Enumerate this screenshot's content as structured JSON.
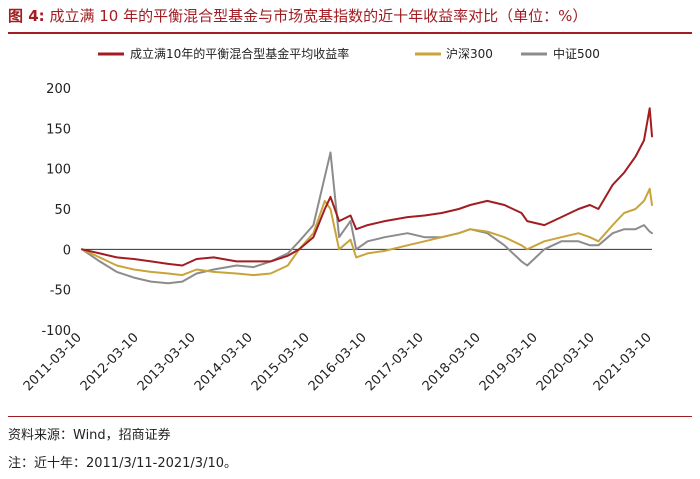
{
  "figure": {
    "label": "图 4:",
    "title": "成立满 10 年的平衡混合型基金与市场宽基指数的近十年收益率对比（单位：%）",
    "source": "资料来源：Wind，招商证券",
    "note": "注：近十年：2011/3/11-2021/3/10。"
  },
  "chart_data": {
    "type": "line",
    "title": "",
    "xlabel": "",
    "ylabel": "",
    "ylim": [
      -100,
      200
    ],
    "yticks": [
      -100,
      -50,
      0,
      50,
      100,
      150,
      200
    ],
    "xticks": [
      "2011-03-10",
      "2012-03-10",
      "2013-03-10",
      "2014-03-10",
      "2015-03-10",
      "2016-03-10",
      "2017-03-10",
      "2018-03-10",
      "2019-03-10",
      "2020-03-10",
      "2021-03-10"
    ],
    "legend_position": "top",
    "grid": false,
    "x": [
      2011.19,
      2011.5,
      2011.8,
      2012.1,
      2012.4,
      2012.7,
      2012.95,
      2013.2,
      2013.5,
      2013.9,
      2014.2,
      2014.5,
      2014.8,
      2015.0,
      2015.25,
      2015.45,
      2015.55,
      2015.7,
      2015.9,
      2016.0,
      2016.2,
      2016.5,
      2016.9,
      2017.2,
      2017.5,
      2017.8,
      2018.0,
      2018.3,
      2018.6,
      2018.9,
      2019.0,
      2019.3,
      2019.6,
      2019.9,
      2020.1,
      2020.25,
      2020.5,
      2020.7,
      2020.9,
      2021.05,
      2021.15,
      2021.19
    ],
    "series": [
      {
        "name": "成立满10年的平衡混合型基金平均收益率",
        "color": "#a11d22",
        "values": [
          0,
          -5,
          -10,
          -12,
          -15,
          -18,
          -20,
          -12,
          -10,
          -15,
          -15,
          -15,
          -8,
          0,
          15,
          50,
          65,
          35,
          42,
          25,
          30,
          35,
          40,
          42,
          45,
          50,
          55,
          60,
          55,
          45,
          35,
          30,
          40,
          50,
          55,
          50,
          80,
          95,
          115,
          135,
          175,
          140
        ]
      },
      {
        "name": "沪深300",
        "color": "#c9a43a",
        "values": [
          0,
          -10,
          -20,
          -25,
          -28,
          -30,
          -32,
          -25,
          -28,
          -30,
          -32,
          -30,
          -20,
          0,
          20,
          60,
          50,
          0,
          12,
          -10,
          -5,
          -2,
          5,
          10,
          15,
          20,
          25,
          22,
          15,
          5,
          0,
          10,
          15,
          20,
          15,
          10,
          30,
          45,
          50,
          60,
          75,
          55
        ]
      },
      {
        "name": "中证500",
        "color": "#8c8c8c",
        "values": [
          0,
          -15,
          -28,
          -35,
          -40,
          -42,
          -40,
          -30,
          -25,
          -20,
          -22,
          -15,
          -5,
          10,
          30,
          90,
          120,
          15,
          35,
          0,
          10,
          15,
          20,
          15,
          15,
          20,
          25,
          20,
          5,
          -15,
          -20,
          0,
          10,
          10,
          5,
          5,
          20,
          25,
          25,
          30,
          22,
          20
        ]
      }
    ]
  }
}
